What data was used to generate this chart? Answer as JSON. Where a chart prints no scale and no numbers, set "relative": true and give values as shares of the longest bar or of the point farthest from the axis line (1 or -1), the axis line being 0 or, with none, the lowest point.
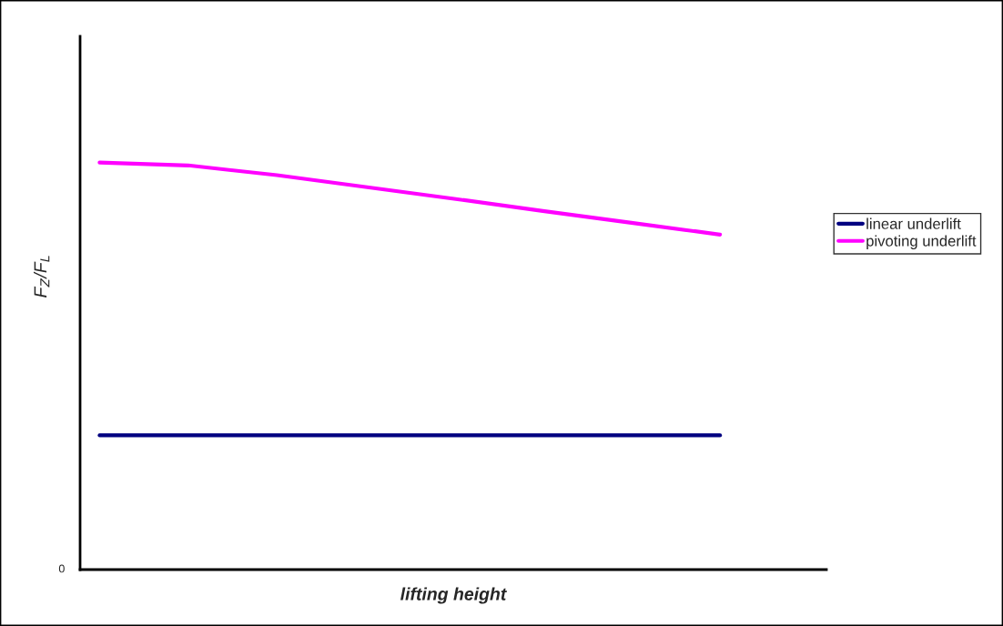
{
  "chart_data": {
    "type": "line",
    "relative": true,
    "xlabel": "lifting height",
    "ylabel": "F$_{Z}$/F$_{L}$",
    "annotations": [
      "0"
    ],
    "categories": [
      null,
      null,
      null,
      null,
      null,
      null,
      null,
      null
    ],
    "series": [
      {
        "name": "linear underlift",
        "color": "#000080",
        "values": [
          0.33,
          0.33,
          0.33,
          0.33,
          0.33,
          0.33,
          0.33,
          0.33
        ]
      },
      {
        "name": "pivoting underlift",
        "color": "#ff00ff",
        "values": [
          1,
          0.993,
          0.969,
          0.94,
          0.911,
          0.881,
          0.852,
          0.823
        ]
      }
    ],
    "legend": "right",
    "marker": "none",
    "line_style": "solid"
  }
}
